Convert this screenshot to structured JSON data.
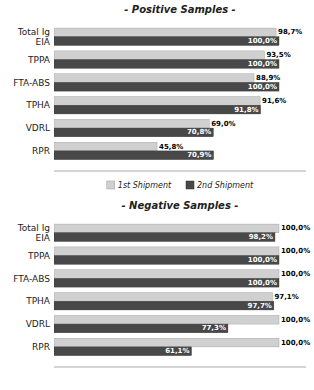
{
  "chart_data": [
    {
      "type": "bar",
      "orientation": "horizontal",
      "title": "- Positive Samples -",
      "categories": [
        "RPR",
        "VDRL",
        "TPHA",
        "FTA-ABS",
        "TPPA",
        "Total Ig\nEIA"
      ],
      "series": [
        {
          "name": "1st Shipment",
          "color": "#d0d0d0",
          "values": [
            45.8,
            69.0,
            91.6,
            88.9,
            93.5,
            98.7
          ],
          "value_labels": [
            "45,8%",
            "69,0%",
            "91,6%",
            "88,9%",
            "93,5%",
            "98,7%"
          ]
        },
        {
          "name": "2nd Shipment",
          "color": "#484848",
          "values": [
            70.9,
            70.8,
            91.8,
            100.0,
            100.0,
            100.0
          ],
          "value_labels": [
            "70,9%",
            "70,8%",
            "91,8%",
            "100,0%",
            "100,0%",
            "100,0%"
          ]
        }
      ],
      "xlim": [
        0,
        112
      ],
      "tick_labels": "y",
      "data_labels": true,
      "grid": false,
      "legend": "bottom"
    },
    {
      "type": "bar",
      "orientation": "horizontal",
      "title": "- Negative Samples -",
      "categories": [
        "RPR",
        "VDRL",
        "TPHA",
        "FTA-ABS",
        "TPPA",
        "Total Ig\nEIA"
      ],
      "series": [
        {
          "name": "1st Shipment",
          "color": "#d0d0d0",
          "values": [
            100.0,
            100.0,
            97.1,
            100.0,
            100.0,
            100.0
          ],
          "value_labels": [
            "100,0%",
            "100,0%",
            "97,1%",
            "100,0%",
            "100,0%",
            "100,0%"
          ]
        },
        {
          "name": "2nd Shipment",
          "color": "#484848",
          "values": [
            61.1,
            77.3,
            97.7,
            100.0,
            100.0,
            98.2
          ],
          "value_labels": [
            "61,1%",
            "77,3%",
            "97,7%",
            "100,0%",
            "100,0%",
            "98,2%"
          ]
        }
      ],
      "xlim": [
        0,
        112
      ],
      "tick_labels": "y",
      "data_labels": true,
      "grid": false,
      "legend": false
    }
  ]
}
